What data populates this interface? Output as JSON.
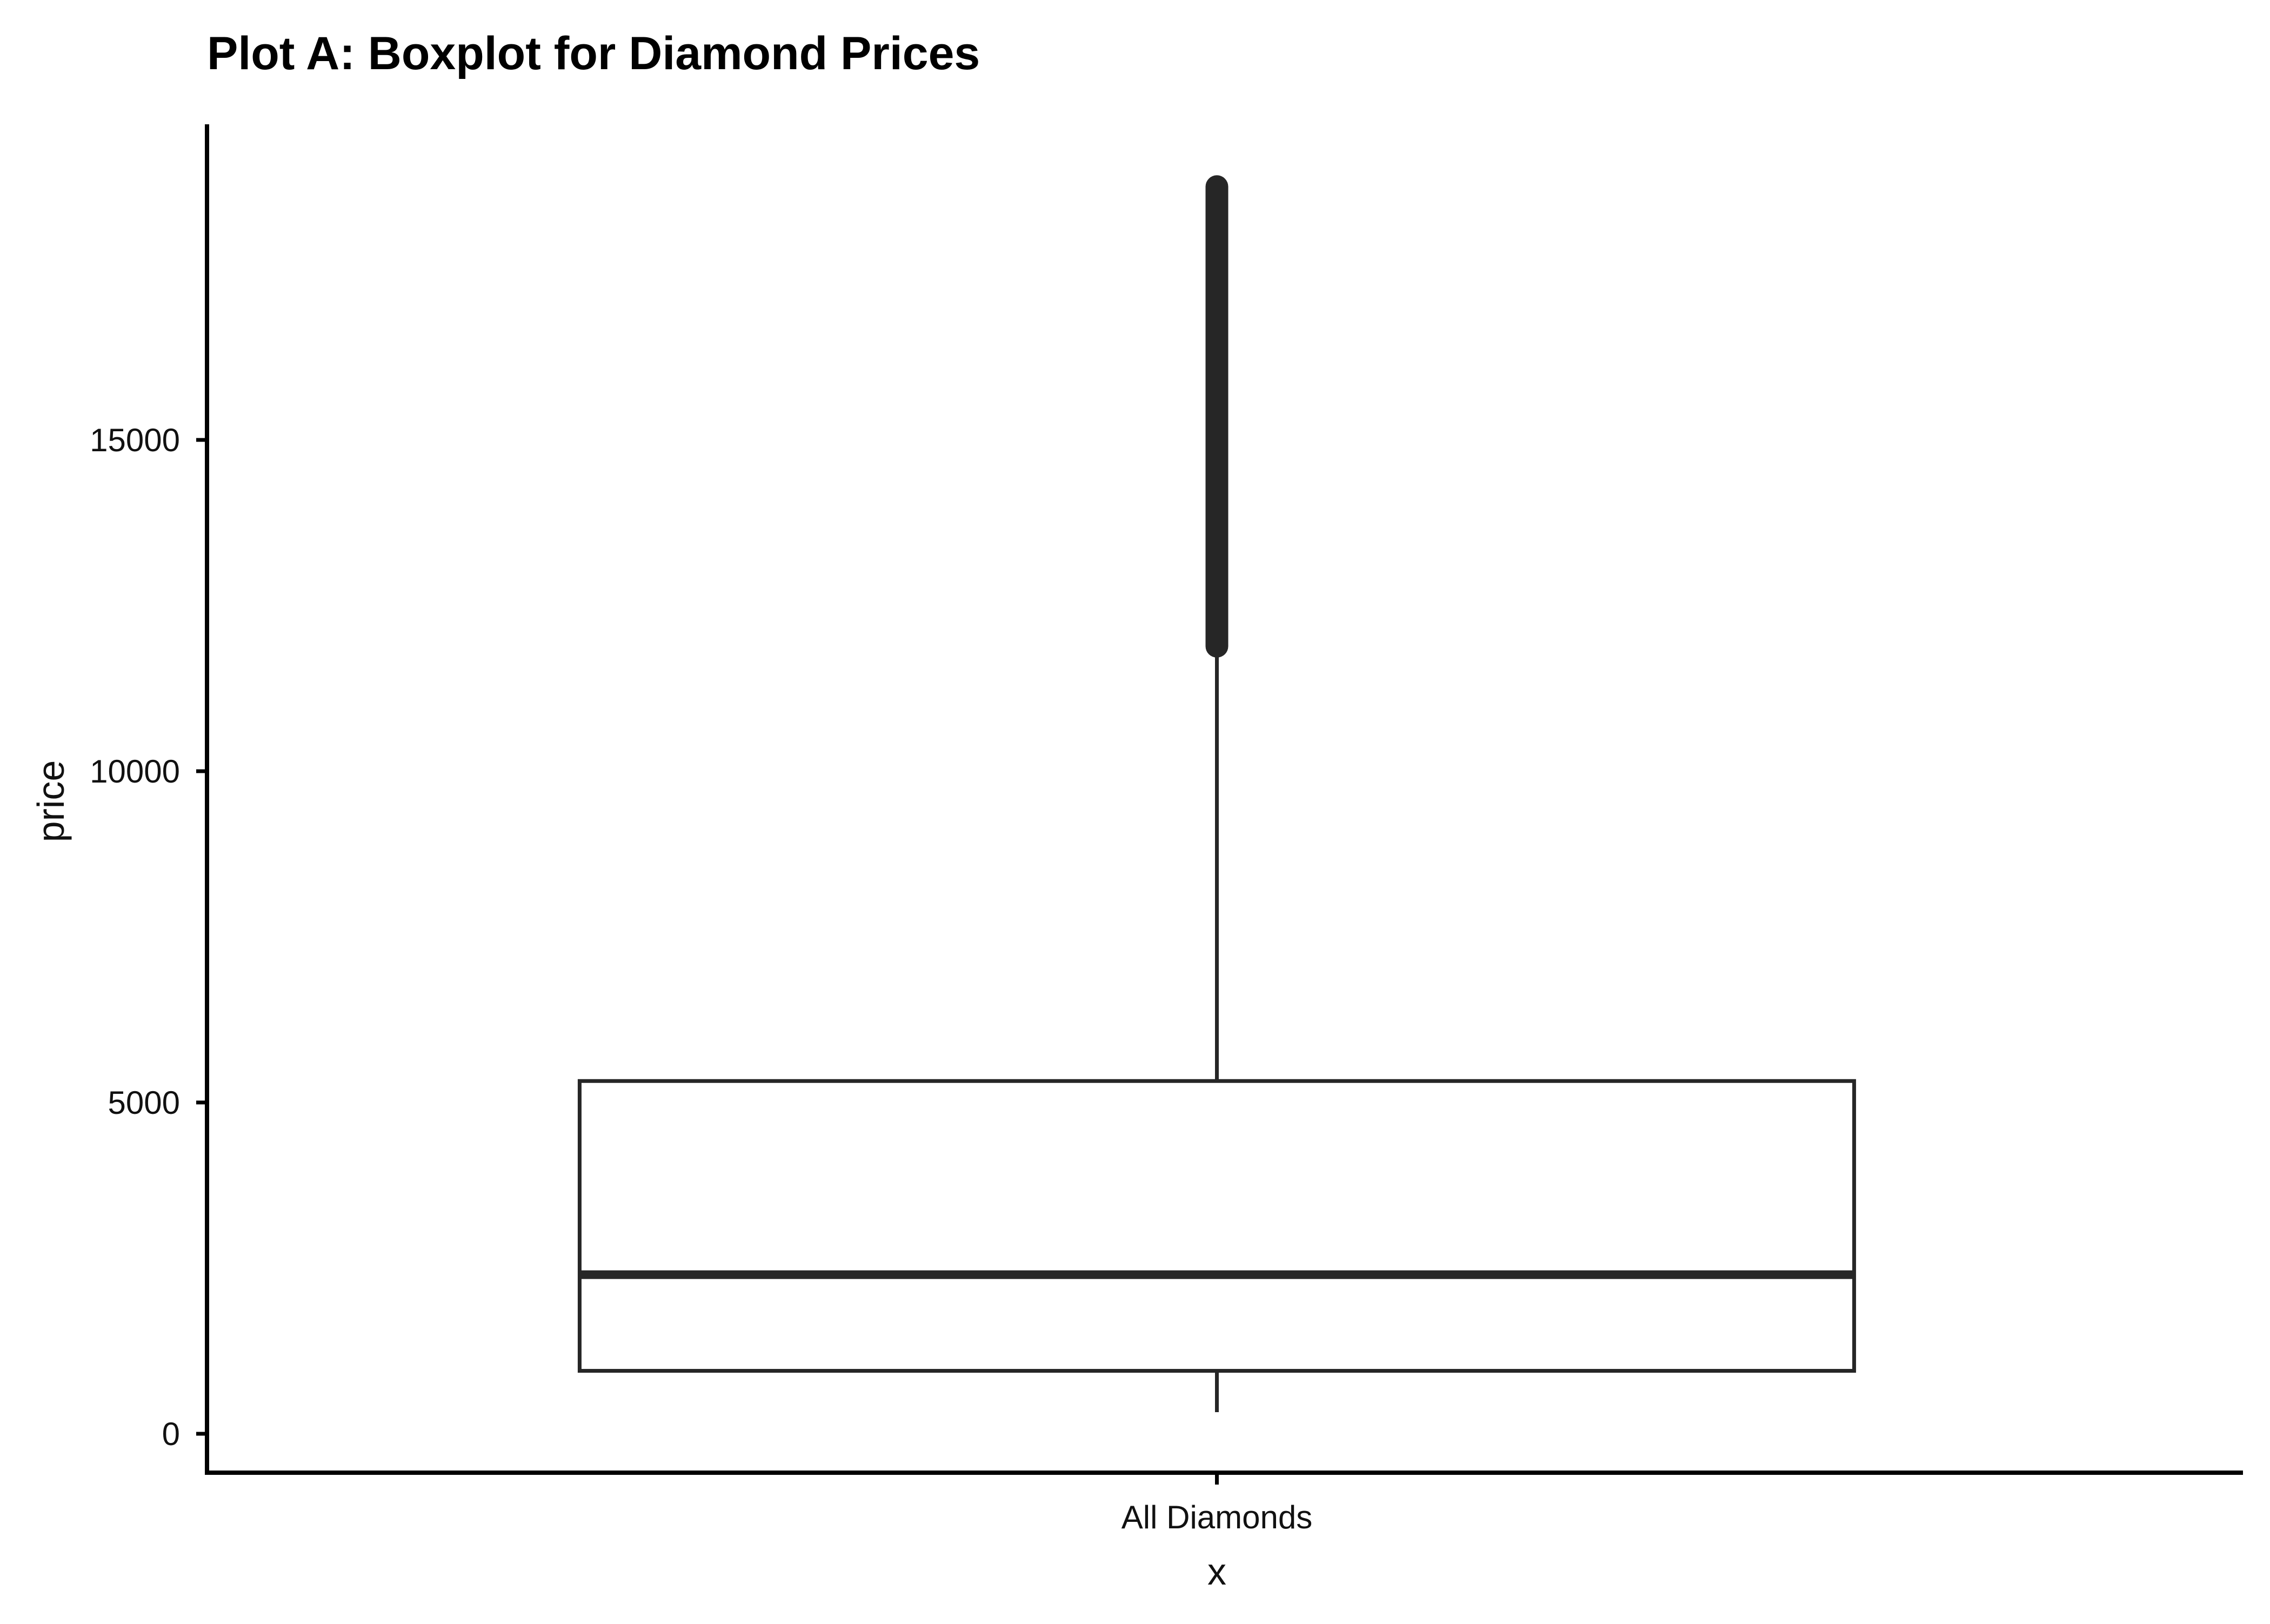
{
  "chart_data": {
    "type": "boxplot",
    "title": "Plot A: Boxplot for Diamond Prices",
    "xlabel": "x",
    "ylabel": "price",
    "categories": [
      "All Diamonds"
    ],
    "y_ticks": [
      0,
      5000,
      10000,
      15000
    ],
    "ylim": [
      -600,
      19700
    ],
    "grid": false,
    "legend": "none",
    "boxes": [
      {
        "category": "All Diamonds",
        "whisker_low": 326,
        "q1": 950,
        "median": 2401,
        "q3": 5324,
        "whisker_high": 11886,
        "outliers_from": 11886,
        "outliers_to": 18823
      }
    ],
    "colors": {
      "box_stroke": "#262626",
      "box_fill": "#ffffff",
      "axis": "#000000"
    }
  }
}
